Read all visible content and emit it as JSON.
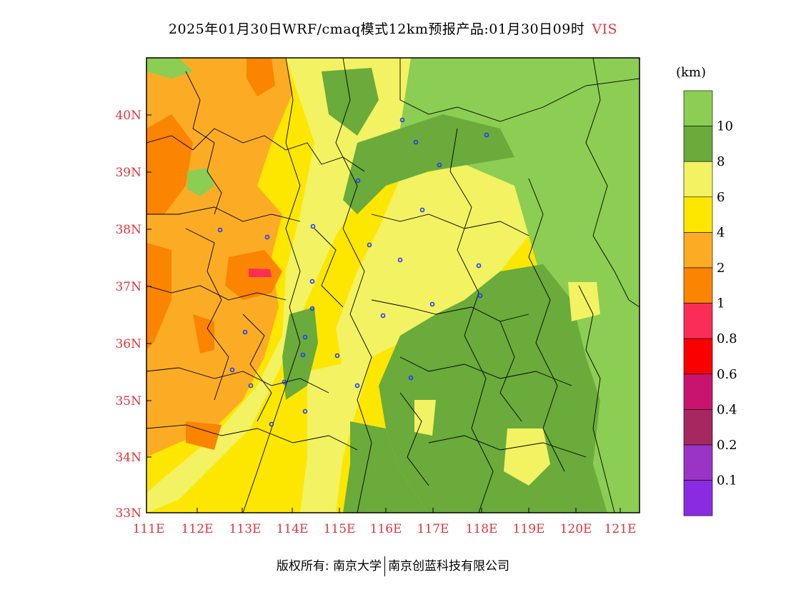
{
  "title": {
    "main": "2025年01月30日WRF/cmaq模式12km预报产品:01月30日09时",
    "variable": "VIS"
  },
  "map": {
    "lon_ticks": [
      "111E",
      "112E",
      "113E",
      "114E",
      "115E",
      "116E",
      "117E",
      "118E",
      "119E",
      "120E",
      "121E"
    ],
    "lat_ticks": [
      "40N",
      "39N",
      "38N",
      "37N",
      "36N",
      "35N",
      "34N",
      "33N"
    ]
  },
  "colorbar": {
    "unit": "(km)",
    "labels": [
      "10",
      "8",
      "6",
      "4",
      "2",
      "1",
      "0.8",
      "0.6",
      "0.4",
      "0.2",
      "0.1"
    ],
    "colors": [
      "#8ccd53",
      "#6aab3b",
      "#f2f263",
      "#fde600",
      "#fcac24",
      "#fb8400",
      "#fa2d58",
      "#fa0000",
      "#c8146e",
      "#a62860",
      "#9a34c6",
      "#8a2be2"
    ]
  },
  "legend_colors": {
    "gt10": "#8ccd53",
    "8_10": "#6aab3b",
    "6_8": "#f2f263",
    "4_6": "#fde600",
    "2_4": "#fcac24",
    "1_2": "#fb8400",
    "0.8_1": "#fa2d58"
  },
  "footer": {
    "left": "版权所有: 南京大学",
    "right": "南京创蓝科技有限公司"
  }
}
